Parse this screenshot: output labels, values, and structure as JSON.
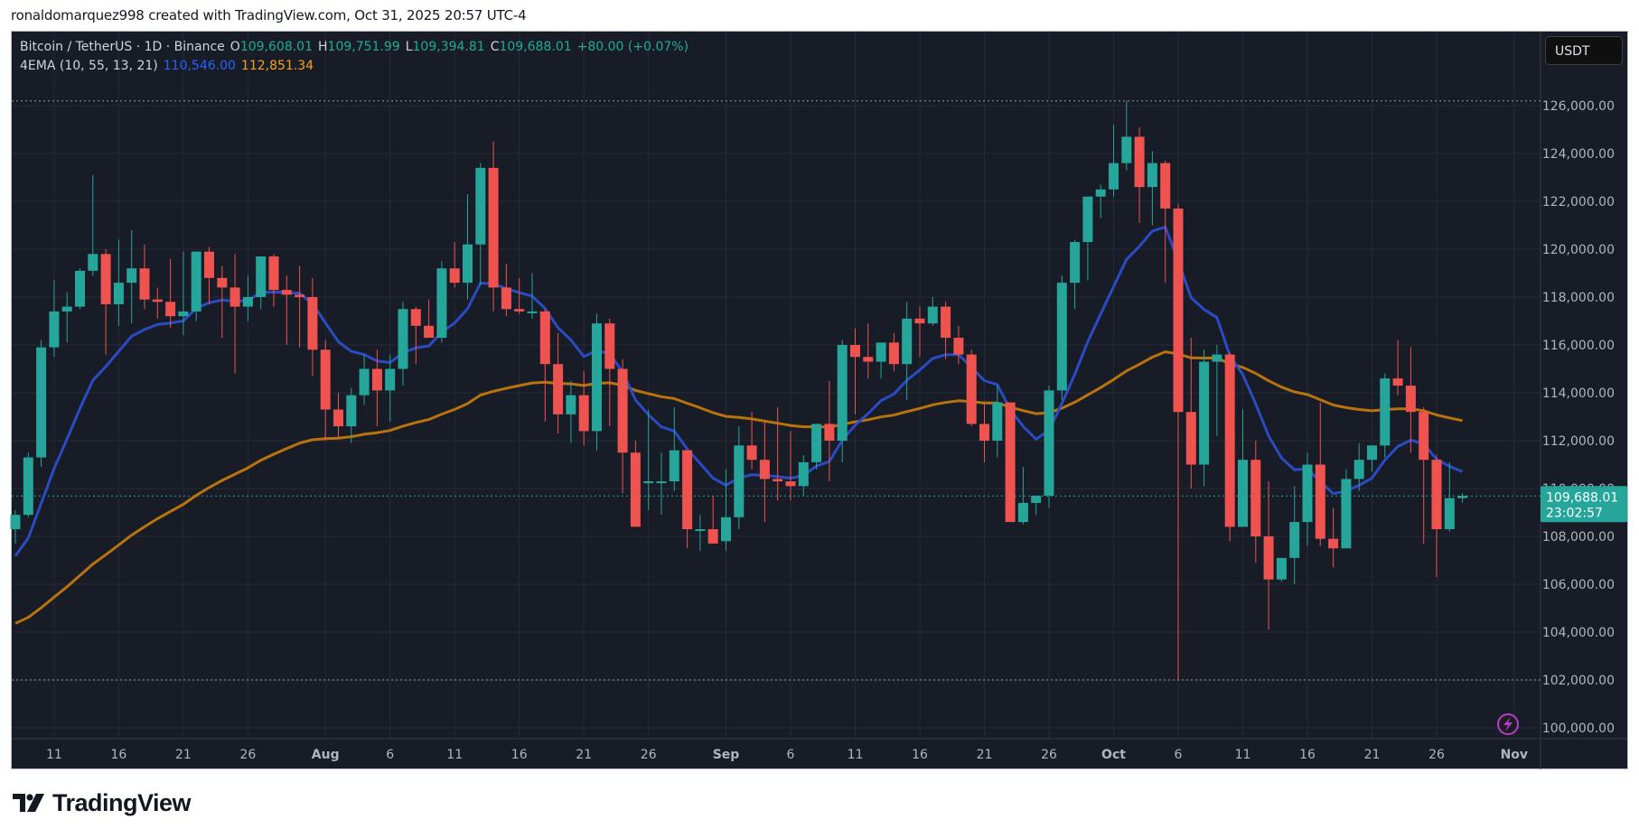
{
  "credit": "ronaldomarquez998 created with TradingView.com, Oct 31, 2025 20:57 UTC-4",
  "legend": {
    "symbol": "Bitcoin / TetherUS · 1D · Binance",
    "o_label": "O",
    "o": "109,608.01",
    "h_label": "H",
    "h": "109,751.99",
    "l_label": "L",
    "l": "109,394.81",
    "c_label": "C",
    "c": "109,688.01",
    "change": "+80.00 (+0.07%)",
    "indicator": "4EMA (10, 55, 13, 21)",
    "ema_fast": "110,546.00",
    "ema_slow": "112,851.34"
  },
  "currency": "USDT",
  "last_price": {
    "value": "109,688.01",
    "countdown": "23:02:57"
  },
  "logo_text": "TradingView",
  "colors": {
    "up": "#26a69a",
    "down": "#ef5350",
    "ema_fast": "#2a4bc4",
    "ema_slow": "#b8730f",
    "bg": "#181c27",
    "grid": "#262a35",
    "alert": "#b33fc9"
  },
  "chart_data": {
    "type": "candlestick",
    "title": "Bitcoin / TetherUS · 1D · Binance",
    "xlabel": "",
    "ylabel": "USDT",
    "ylim": [
      99500,
      127500
    ],
    "y_ticks": [
      100000,
      102000,
      104000,
      106000,
      108000,
      110000,
      112000,
      114000,
      116000,
      118000,
      120000,
      122000,
      124000,
      126000
    ],
    "y_tick_labels": [
      "100,000.00",
      "102,000.00",
      "104,000.00",
      "106,000.00",
      "108,000.00",
      "110,000.00",
      "112,000.00",
      "114,000.00",
      "116,000.00",
      "118,000.00",
      "120,000.00",
      "122,000.00",
      "124,000.00",
      "126,000.00"
    ],
    "x_tick_labels": [
      {
        "label": "11",
        "day": 3
      },
      {
        "label": "16",
        "day": 8
      },
      {
        "label": "21",
        "day": 13
      },
      {
        "label": "26",
        "day": 18
      },
      {
        "label": "Aug",
        "day": 24,
        "bold": true
      },
      {
        "label": "6",
        "day": 29
      },
      {
        "label": "11",
        "day": 34
      },
      {
        "label": "16",
        "day": 39
      },
      {
        "label": "21",
        "day": 44
      },
      {
        "label": "26",
        "day": 49
      },
      {
        "label": "Sep",
        "day": 55,
        "bold": true
      },
      {
        "label": "6",
        "day": 60
      },
      {
        "label": "11",
        "day": 65
      },
      {
        "label": "16",
        "day": 70
      },
      {
        "label": "21",
        "day": 75
      },
      {
        "label": "26",
        "day": 80
      },
      {
        "label": "Oct",
        "day": 85,
        "bold": true
      },
      {
        "label": "6",
        "day": 90
      },
      {
        "label": "11",
        "day": 95
      },
      {
        "label": "16",
        "day": 100
      },
      {
        "label": "21",
        "day": 105
      },
      {
        "label": "26",
        "day": 110
      },
      {
        "label": "Nov",
        "day": 116,
        "bold": true
      }
    ],
    "start_date": "2025-07-08",
    "candles_ohlc": [
      [
        108300,
        109100,
        107700,
        108900
      ],
      [
        108900,
        111500,
        108800,
        111300
      ],
      [
        111300,
        116200,
        110900,
        115900
      ],
      [
        115900,
        118700,
        115500,
        117400
      ],
      [
        117400,
        118200,
        116100,
        117600
      ],
      [
        117600,
        119200,
        117500,
        119100
      ],
      [
        119100,
        123100,
        118900,
        119800
      ],
      [
        119800,
        120000,
        115600,
        117700
      ],
      [
        117700,
        120400,
        116800,
        118600
      ],
      [
        118600,
        120800,
        116900,
        119200
      ],
      [
        119200,
        120200,
        117500,
        117900
      ],
      [
        117900,
        118400,
        117100,
        117800
      ],
      [
        117800,
        119600,
        116700,
        117200
      ],
      [
        117200,
        119900,
        116400,
        117400
      ],
      [
        117400,
        119900,
        117000,
        119900
      ],
      [
        119900,
        120100,
        117700,
        118800
      ],
      [
        118800,
        119300,
        116300,
        118400
      ],
      [
        118400,
        119800,
        114800,
        117600
      ],
      [
        117600,
        118900,
        117000,
        118000
      ],
      [
        118000,
        119700,
        117500,
        119700
      ],
      [
        119700,
        119800,
        117600,
        118300
      ],
      [
        118300,
        118900,
        116000,
        118100
      ],
      [
        118100,
        119300,
        115900,
        118000
      ],
      [
        118000,
        118800,
        114700,
        115800
      ],
      [
        115800,
        116200,
        112000,
        113300
      ],
      [
        113300,
        114000,
        112100,
        112600
      ],
      [
        112600,
        114200,
        111900,
        113900
      ],
      [
        113900,
        115600,
        113500,
        115000
      ],
      [
        115000,
        115800,
        112600,
        114100
      ],
      [
        114100,
        115600,
        112800,
        115000
      ],
      [
        115000,
        117800,
        114300,
        117500
      ],
      [
        117500,
        117600,
        115200,
        116800
      ],
      [
        116800,
        117900,
        116500,
        116300
      ],
      [
        116300,
        119500,
        116100,
        119200
      ],
      [
        119200,
        120300,
        118400,
        118600
      ],
      [
        118600,
        122300,
        117900,
        120200
      ],
      [
        120200,
        123600,
        118500,
        123400
      ],
      [
        123400,
        124500,
        117400,
        118400
      ],
      [
        118400,
        119400,
        117200,
        117500
      ],
      [
        117500,
        118800,
        117300,
        117400
      ],
      [
        117400,
        119000,
        117100,
        117400
      ],
      [
        117400,
        117500,
        112800,
        115200
      ],
      [
        115200,
        116500,
        112300,
        113100
      ],
      [
        113100,
        114500,
        111900,
        113900
      ],
      [
        113900,
        114900,
        111800,
        112400
      ],
      [
        112400,
        117300,
        111600,
        116900
      ],
      [
        116900,
        117100,
        112600,
        115000
      ],
      [
        115000,
        115400,
        109800,
        111500
      ],
      [
        111500,
        112000,
        110300,
        108400
      ],
      [
        110300,
        113300,
        109100,
        110300
      ],
      [
        110300,
        111500,
        108900,
        110300
      ],
      [
        110300,
        113400,
        109900,
        111600
      ],
      [
        111600,
        111600,
        107500,
        108300
      ],
      [
        108300,
        108900,
        107400,
        108300
      ],
      [
        108300,
        109700,
        108100,
        107700
      ],
      [
        107800,
        110800,
        107400,
        108800
      ],
      [
        108800,
        112600,
        108300,
        111800
      ],
      [
        111800,
        113200,
        110800,
        111200
      ],
      [
        111200,
        112800,
        108600,
        110400
      ],
      [
        110400,
        113400,
        109500,
        110300
      ],
      [
        110300,
        112400,
        109500,
        110100
      ],
      [
        110100,
        111400,
        109700,
        111100
      ],
      [
        111100,
        112700,
        110800,
        112700
      ],
      [
        112700,
        114500,
        110300,
        112000
      ],
      [
        112000,
        116200,
        111100,
        116000
      ],
      [
        116000,
        116700,
        113100,
        115500
      ],
      [
        115500,
        116900,
        114600,
        115300
      ],
      [
        115300,
        115700,
        114600,
        116100
      ],
      [
        116100,
        116500,
        114900,
        115200
      ],
      [
        115200,
        117800,
        113700,
        117100
      ],
      [
        117100,
        117600,
        115500,
        116900
      ],
      [
        116900,
        118000,
        116800,
        117600
      ],
      [
        117600,
        117800,
        115400,
        116300
      ],
      [
        116300,
        116800,
        115200,
        115600
      ],
      [
        115600,
        115800,
        112600,
        112700
      ],
      [
        112700,
        113600,
        111100,
        112000
      ],
      [
        112000,
        114300,
        111300,
        113600
      ],
      [
        113600,
        113500,
        108700,
        108600
      ],
      [
        108600,
        110900,
        108500,
        109400
      ],
      [
        109400,
        109700,
        108900,
        109700
      ],
      [
        109700,
        114300,
        109200,
        114100
      ],
      [
        114100,
        118900,
        113700,
        118600
      ],
      [
        118600,
        120400,
        117500,
        120300
      ],
      [
        120300,
        121800,
        118700,
        122200
      ],
      [
        122200,
        122700,
        121300,
        122500
      ],
      [
        122500,
        125200,
        122200,
        123600
      ],
      [
        123600,
        126200,
        123300,
        124700
      ],
      [
        124700,
        125100,
        121100,
        122600
      ],
      [
        122600,
        124100,
        121000,
        123600
      ],
      [
        123600,
        123700,
        118600,
        121700
      ],
      [
        121700,
        121900,
        102000,
        113200
      ],
      [
        113200,
        116300,
        110000,
        111000
      ],
      [
        111000,
        115800,
        110100,
        115300
      ],
      [
        115300,
        116000,
        112200,
        115600
      ],
      [
        115600,
        115700,
        107800,
        108400
      ],
      [
        108400,
        113300,
        108700,
        111200
      ],
      [
        111200,
        112000,
        106900,
        108000
      ],
      [
        108000,
        110300,
        104100,
        106200
      ],
      [
        106200,
        107100,
        106100,
        107100
      ],
      [
        107100,
        110100,
        106000,
        108600
      ],
      [
        108600,
        111500,
        107600,
        111000
      ],
      [
        111000,
        113600,
        107600,
        107900
      ],
      [
        107900,
        109200,
        106700,
        107500
      ],
      [
        107500,
        110800,
        107600,
        110400
      ],
      [
        110400,
        111900,
        109900,
        111200
      ],
      [
        111200,
        111600,
        110700,
        111800
      ],
      [
        111800,
        114800,
        111300,
        114600
      ],
      [
        114600,
        116200,
        113900,
        114300
      ],
      [
        114300,
        115900,
        111500,
        113200
      ],
      [
        113200,
        113400,
        107700,
        111200
      ],
      [
        111200,
        111400,
        106300,
        108300
      ],
      [
        108300,
        111100,
        108200,
        109600
      ],
      [
        109600,
        109800,
        109400,
        109700
      ]
    ],
    "series": [
      {
        "name": "EMA fast (blue)",
        "last": 110546.0
      },
      {
        "name": "EMA slow (orange)",
        "last": 112851.34
      }
    ],
    "high_marker": 126200,
    "low_marker": 102000,
    "last_price": 109688.01
  }
}
